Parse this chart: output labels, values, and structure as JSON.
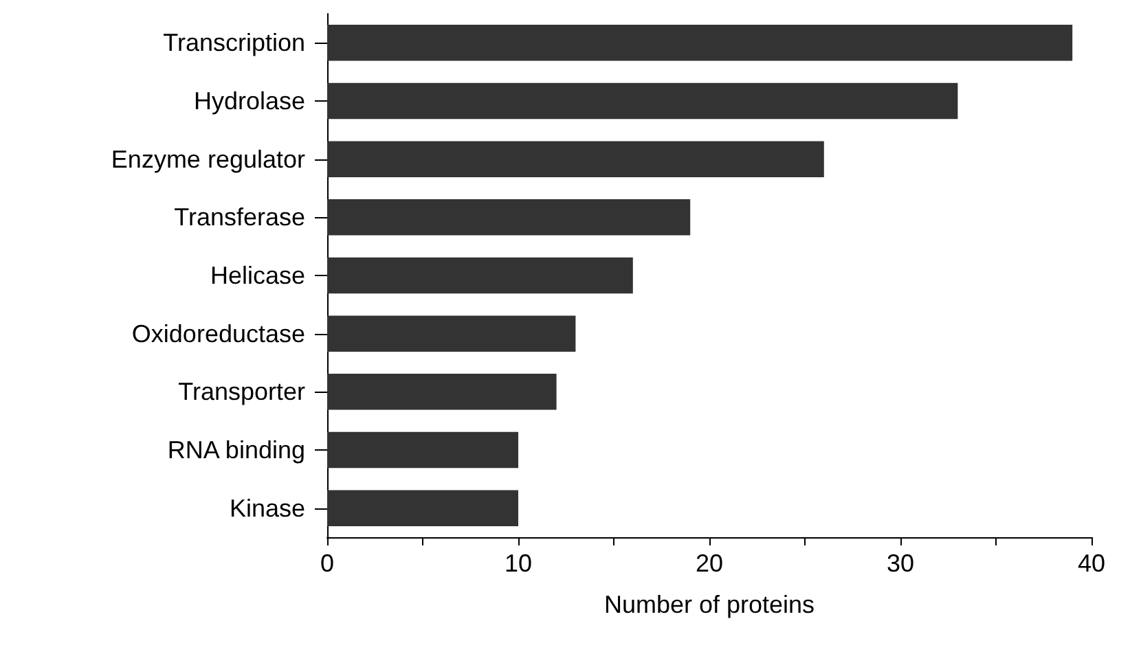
{
  "chart_data": {
    "type": "bar",
    "orientation": "horizontal",
    "xlabel": "Number of proteins",
    "categories": [
      "Transcription",
      "Hydrolase",
      "Enzyme regulator",
      "Transferase",
      "Helicase",
      "Oxidoreductase",
      "Transporter",
      "RNA binding",
      "Kinase"
    ],
    "values": [
      39,
      33,
      26,
      19,
      16,
      13,
      12,
      10,
      10
    ],
    "color": "#333333",
    "xlim": [
      0,
      40
    ],
    "xticks": [
      0,
      {
        "value": 5,
        "label": null
      },
      10,
      {
        "value": 15,
        "label": null
      },
      20,
      {
        "value": 25,
        "label": null
      },
      30,
      {
        "value": 35,
        "label": null
      },
      40
    ],
    "grid": false
  }
}
